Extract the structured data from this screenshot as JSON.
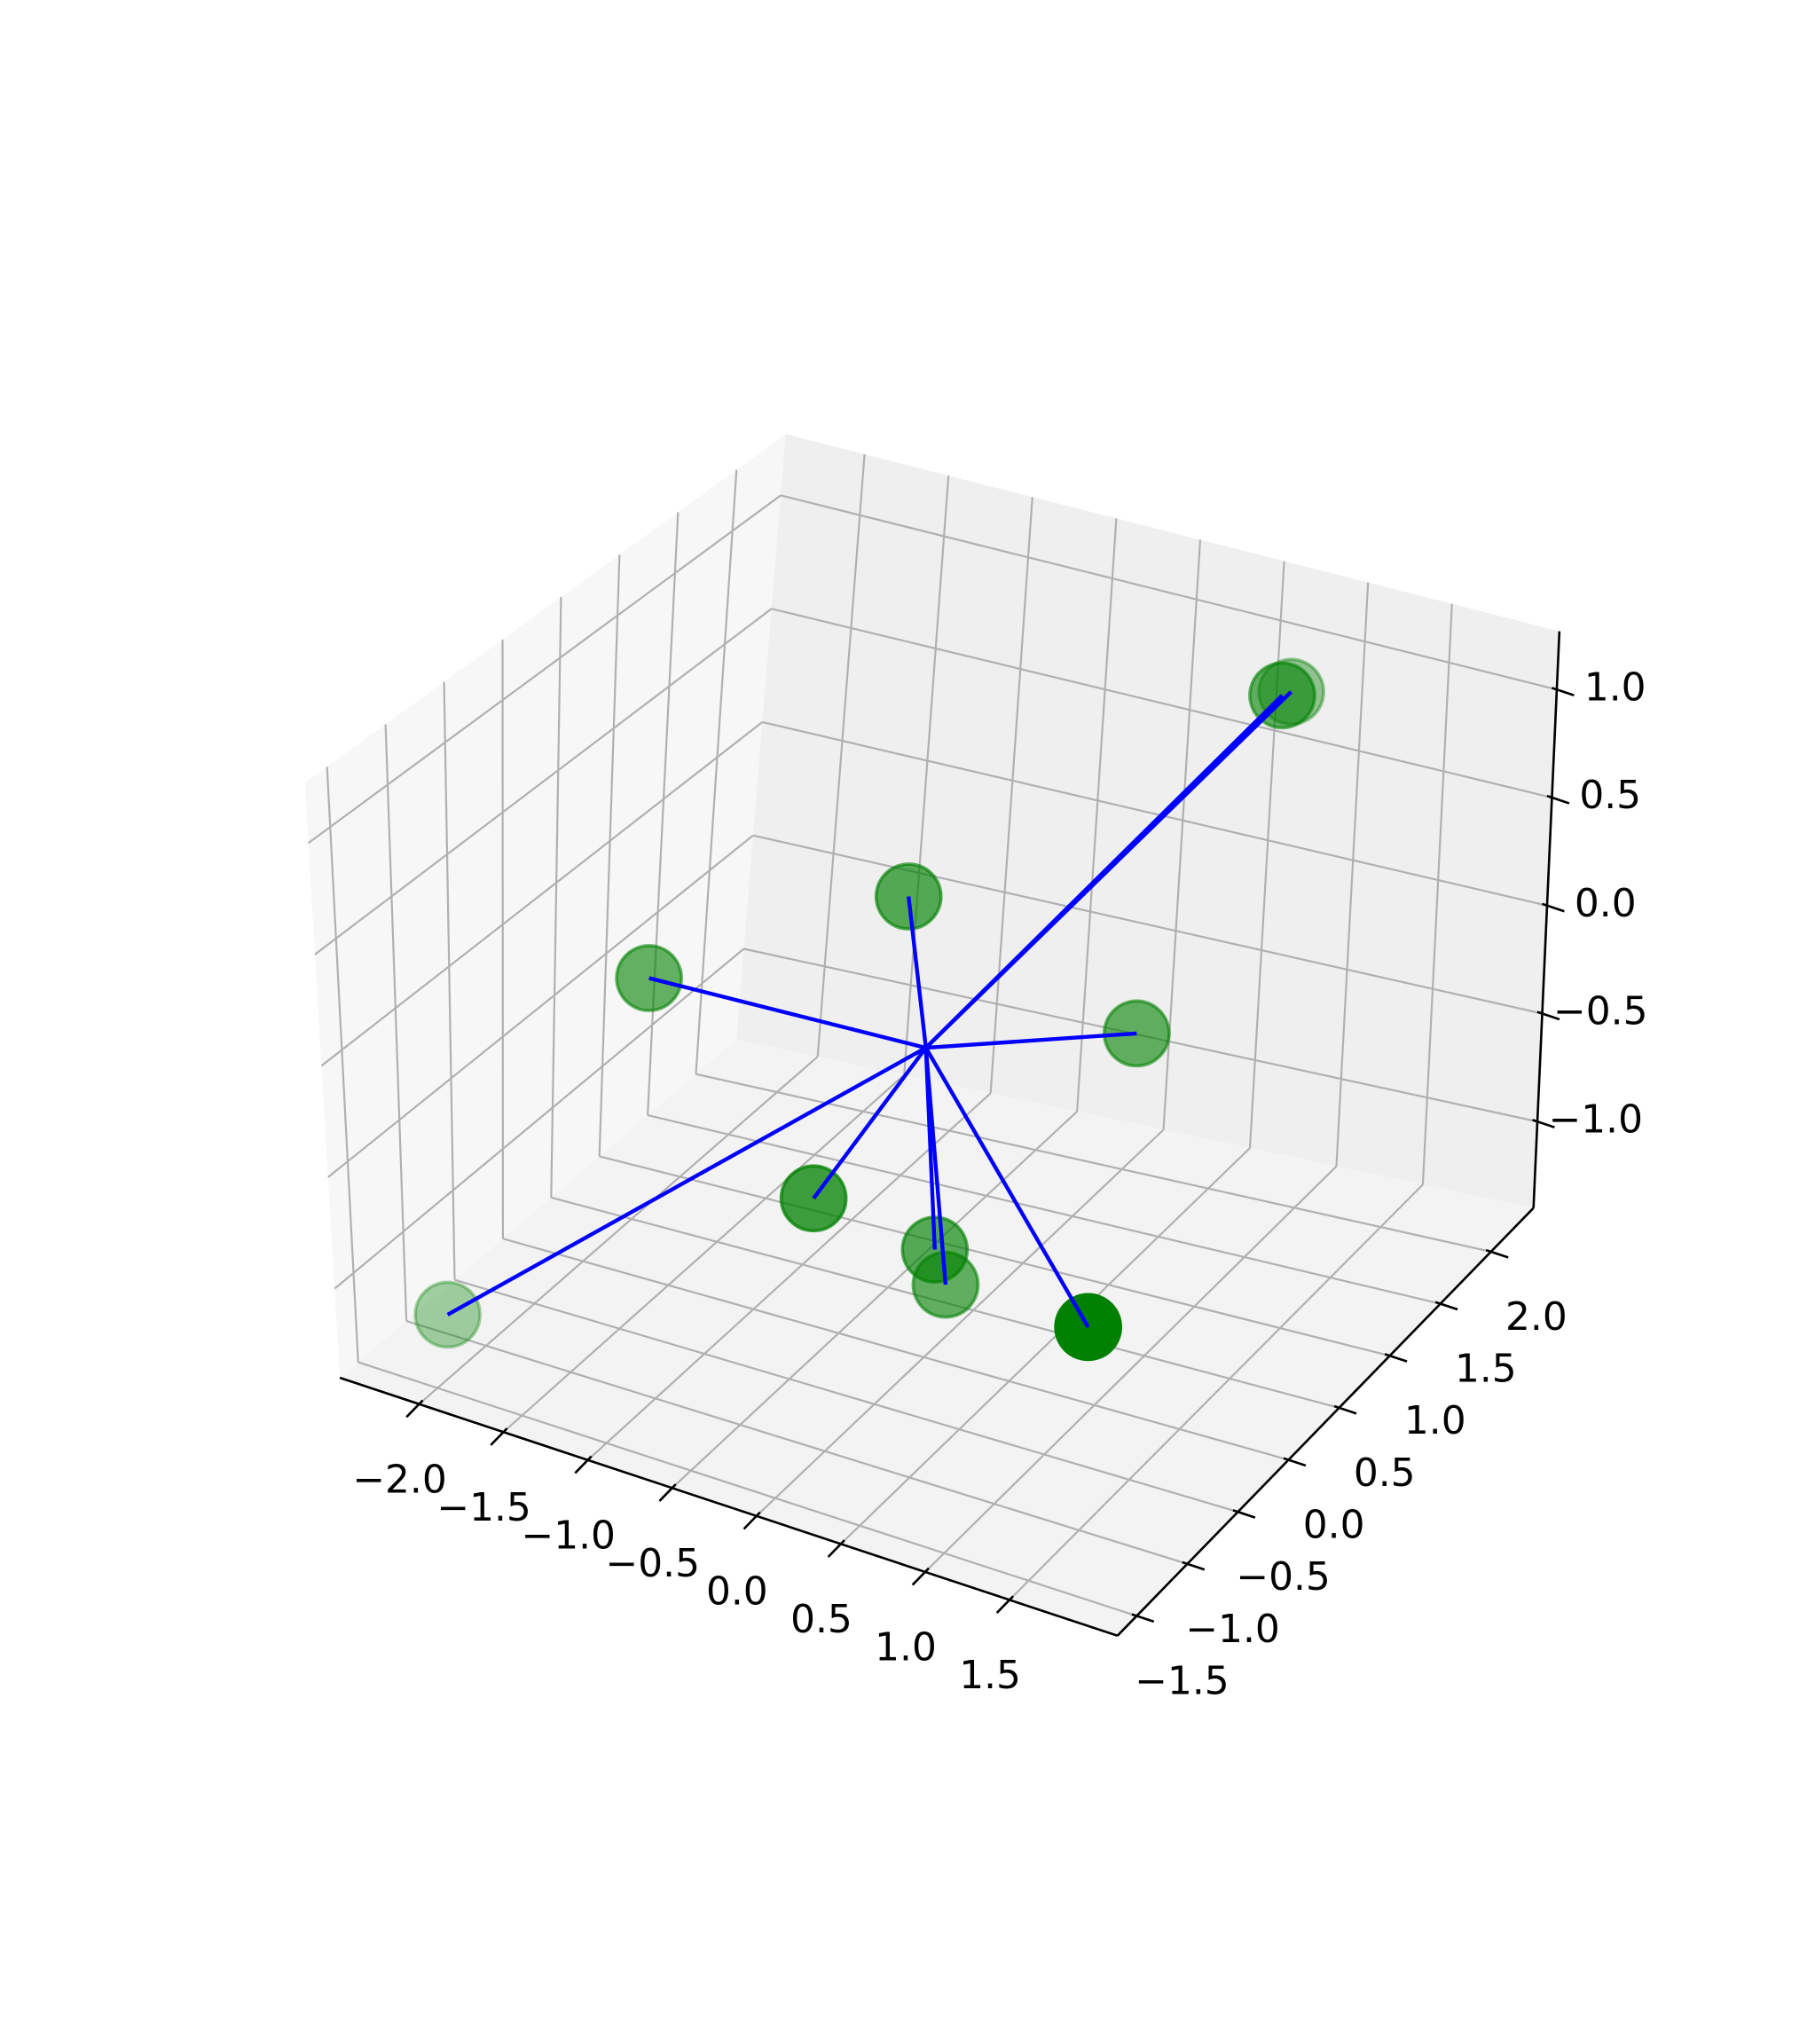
{
  "chart_data": {
    "type": "scatter3d",
    "x": [
      0.79,
      0.78,
      -0.42,
      -2.1,
      0.74,
      -0.35,
      0.06,
      -0.05,
      -2.3,
      1.56
    ],
    "y": [
      2.0,
      2.1,
      0.5,
      0.8,
      0.8,
      -0.5,
      0.0,
      0.3,
      -0.87,
      -1.0
    ],
    "z": [
      0.9,
      0.87,
      0.38,
      -0.46,
      -0.12,
      -0.55,
      -0.9,
      -1.21,
      -1.38,
      -0.46
    ],
    "alpha": [
      0.6,
      0.4,
      0.65,
      0.6,
      0.6,
      0.75,
      0.65,
      0.6,
      0.35,
      1.0
    ],
    "color": "#008000",
    "line_color": "#0000ff",
    "xlim": [
      -2.47,
      2.14
    ],
    "ylim": [
      -1.69,
      2.42
    ],
    "zlim": [
      -1.4,
      1.27
    ],
    "xticks": [
      {
        "value": -2.0,
        "label": "−2.0"
      },
      {
        "value": -1.5,
        "label": "−1.5"
      },
      {
        "value": -1.0,
        "label": "−1.0"
      },
      {
        "value": -0.5,
        "label": "−0.5"
      },
      {
        "value": 0.0,
        "label": "0.0"
      },
      {
        "value": 0.5,
        "label": "0.5"
      },
      {
        "value": 1.0,
        "label": "1.0"
      },
      {
        "value": 1.5,
        "label": "1.5"
      }
    ],
    "yticks": [
      {
        "value": -1.5,
        "label": "−1.5"
      },
      {
        "value": -1.0,
        "label": "−1.0"
      },
      {
        "value": -0.5,
        "label": "−0.5"
      },
      {
        "value": 0.0,
        "label": "0.0"
      },
      {
        "value": 0.5,
        "label": "0.5"
      },
      {
        "value": 1.0,
        "label": "1.0"
      },
      {
        "value": 1.5,
        "label": "1.5"
      },
      {
        "value": 2.0,
        "label": "2.0"
      }
    ],
    "zticks": [
      {
        "value": -1.0,
        "label": "−1.0"
      },
      {
        "value": -0.5,
        "label": "−0.5"
      },
      {
        "value": 0.0,
        "label": "0.0"
      },
      {
        "value": 0.5,
        "label": "0.5"
      },
      {
        "value": 1.0,
        "label": "1.0"
      }
    ],
    "grid": true
  }
}
